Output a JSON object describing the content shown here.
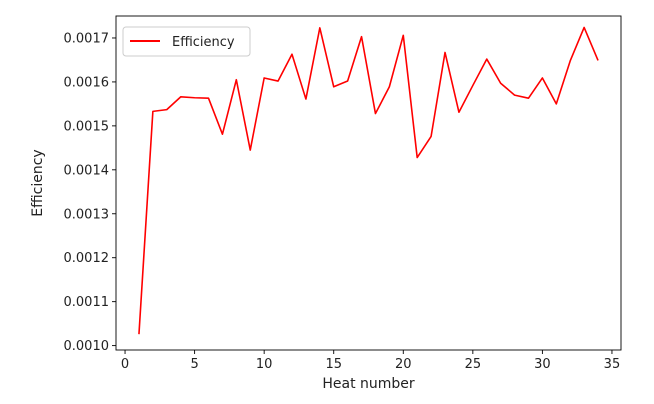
{
  "chart_data": {
    "type": "line",
    "xlabel": "Heat number",
    "ylabel": "Efficiency",
    "xlim": [
      -0.65,
      35.65
    ],
    "ylim": [
      0.00099,
      0.00175
    ],
    "xticks": [
      0,
      5,
      10,
      15,
      20,
      25,
      30,
      35
    ],
    "xtick_labels": [
      "0",
      "5",
      "10",
      "15",
      "20",
      "25",
      "30",
      "35"
    ],
    "yticks": [
      0.001,
      0.0011,
      0.0012,
      0.0013,
      0.0014,
      0.0015,
      0.0016,
      0.0017
    ],
    "ytick_labels": [
      "0.0010",
      "0.0011",
      "0.0012",
      "0.0013",
      "0.0014",
      "0.0015",
      "0.0016",
      "0.0017"
    ],
    "grid": false,
    "legend_position": "top-left",
    "series": [
      {
        "name": "Efficiency",
        "color": "#ff0000",
        "x": [
          1,
          2,
          3,
          4,
          5,
          6,
          7,
          8,
          9,
          10,
          11,
          12,
          13,
          14,
          15,
          16,
          17,
          18,
          19,
          20,
          21,
          22,
          23,
          24,
          25,
          26,
          27,
          28,
          29,
          30,
          31,
          32,
          33,
          34
        ],
        "y": [
          0.001026,
          0.001533,
          0.001537,
          0.001566,
          0.001564,
          0.001563,
          0.001481,
          0.001605,
          0.001445,
          0.001609,
          0.001602,
          0.001663,
          0.001561,
          0.001723,
          0.001589,
          0.001602,
          0.001703,
          0.001528,
          0.001589,
          0.001706,
          0.001428,
          0.001476,
          0.001667,
          0.001531,
          0.001592,
          0.001652,
          0.001597,
          0.00157,
          0.001563,
          0.001609,
          0.00155,
          0.001648,
          0.001724,
          0.001649
        ]
      }
    ]
  }
}
